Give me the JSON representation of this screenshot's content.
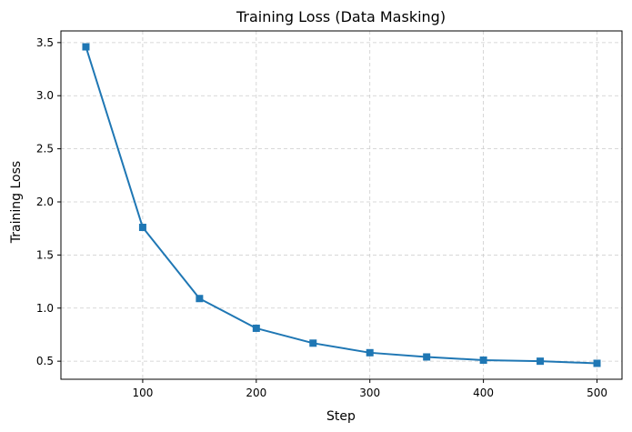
{
  "chart_data": {
    "type": "line",
    "title": "Training Loss (Data Masking)",
    "xlabel": "Step",
    "ylabel": "Training Loss",
    "xlim": [
      28,
      522
    ],
    "ylim": [
      0.33,
      3.61
    ],
    "grid": true,
    "grid_style": "dashed",
    "x_ticks": [
      100,
      200,
      300,
      400,
      500
    ],
    "y_ticks": [
      0.5,
      1.0,
      1.5,
      2.0,
      2.5,
      3.0,
      3.5
    ],
    "x_tick_labels": [
      "100",
      "200",
      "300",
      "400",
      "500"
    ],
    "y_tick_labels": [
      "0.5",
      "1.0",
      "1.5",
      "2.0",
      "2.5",
      "3.0",
      "3.5"
    ],
    "series": [
      {
        "color": "#1f77b4",
        "marker": "square",
        "x": [
          50,
          100,
          150,
          200,
          250,
          300,
          350,
          400,
          450,
          500
        ],
        "y": [
          3.46,
          1.76,
          1.09,
          0.81,
          0.67,
          0.58,
          0.54,
          0.51,
          0.5,
          0.48
        ]
      }
    ]
  }
}
